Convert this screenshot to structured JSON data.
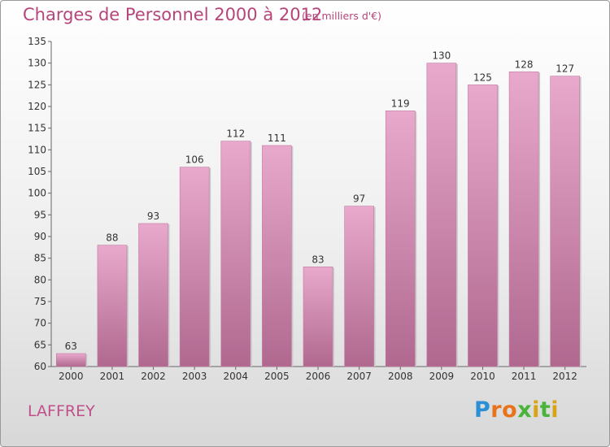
{
  "header": {
    "title": "Charges de Personnel 2000 à 2012",
    "subtitle": "(en milliers d'€)"
  },
  "commune": "LAFFREY",
  "logo": {
    "text": "Proxiti",
    "colors": [
      "#2a8fd4",
      "#e8731a",
      "#49b33a",
      "#d8a315"
    ]
  },
  "colors": {
    "bar_top": "#e8a9cc",
    "bar_bottom": "#b0688f",
    "label": "#333333",
    "grid": "#d0d0d0"
  },
  "chart_data": {
    "type": "bar",
    "title": "Charges de Personnel 2000 à 2012",
    "subtitle": "(en milliers d'€)",
    "categories": [
      "2000",
      "2001",
      "2002",
      "2003",
      "2004",
      "2005",
      "2006",
      "2007",
      "2008",
      "2009",
      "2010",
      "2011",
      "2012"
    ],
    "values": [
      63,
      88,
      93,
      106,
      112,
      111,
      83,
      97,
      119,
      130,
      125,
      128,
      127
    ],
    "ylim": [
      60,
      135
    ],
    "yticks": [
      60,
      65,
      70,
      75,
      80,
      85,
      90,
      95,
      100,
      105,
      110,
      115,
      120,
      125,
      130,
      135
    ],
    "grid": false,
    "legend": "none"
  }
}
